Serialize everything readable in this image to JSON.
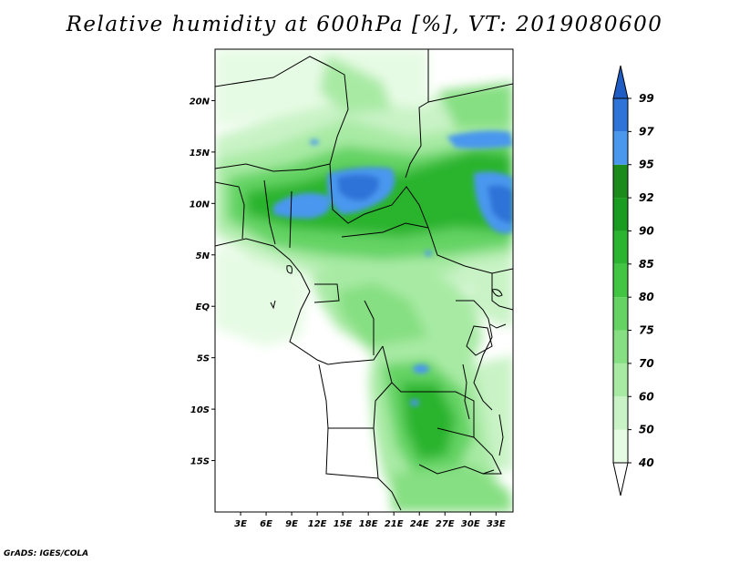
{
  "title": "Relative humidity at 600hPa [%], VT: 2019080600",
  "credit": "GrADS: IGES/COLA",
  "map": {
    "projection": "lat-lon",
    "lon_range": [
      0,
      35
    ],
    "lat_range": [
      -20,
      25
    ],
    "lat_ticks": [
      {
        "value": 20,
        "label": "20N"
      },
      {
        "value": 15,
        "label": "15N"
      },
      {
        "value": 10,
        "label": "10N"
      },
      {
        "value": 5,
        "label": "5N"
      },
      {
        "value": 0,
        "label": "EQ"
      },
      {
        "value": -5,
        "label": "5S"
      },
      {
        "value": -10,
        "label": "10S"
      },
      {
        "value": -15,
        "label": "15S"
      }
    ],
    "lon_ticks": [
      {
        "value": 3,
        "label": "3E"
      },
      {
        "value": 6,
        "label": "6E"
      },
      {
        "value": 9,
        "label": "9E"
      },
      {
        "value": 12,
        "label": "12E"
      },
      {
        "value": 15,
        "label": "15E"
      },
      {
        "value": 18,
        "label": "18E"
      },
      {
        "value": 21,
        "label": "21E"
      },
      {
        "value": 24,
        "label": "24E"
      },
      {
        "value": 27,
        "label": "27E"
      },
      {
        "value": 30,
        "label": "30E"
      },
      {
        "value": 33,
        "label": "33E"
      }
    ]
  },
  "colorbar": {
    "levels": [
      "40",
      "50",
      "60",
      "70",
      "75",
      "80",
      "85",
      "90",
      "92",
      "95",
      "97",
      "99"
    ],
    "colors": [
      "#ffffff",
      "#e6fbe4",
      "#c9f3c6",
      "#a8eaa4",
      "#86df82",
      "#64d363",
      "#43c544",
      "#2bb42f",
      "#1a9c20",
      "#1b8c1b",
      "#4a97ee",
      "#2d73d8",
      "#1f5cc4"
    ]
  }
}
